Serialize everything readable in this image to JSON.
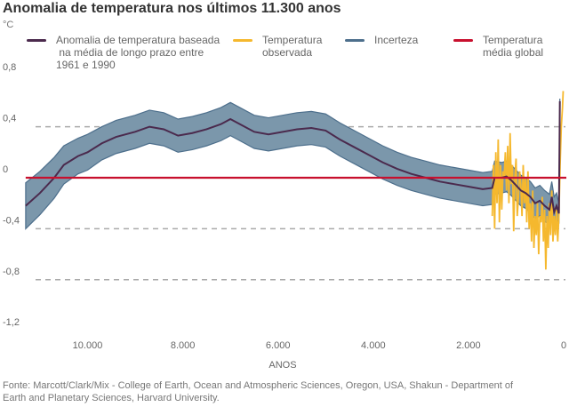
{
  "title": "Anomalia de temperatura nos últimos 11.300 anos",
  "source": "Fonte: Marcott/Clark/Mix - College of Earth, Ocean and Atmospheric Sciences, Oregon, USA, Shakun - Department of Earth and Planetary Sciences, Harvard University.",
  "chart_data": {
    "type": "line",
    "title": "Anomalia de temperatura nos últimos 11.300 anos",
    "ylabel": "°C",
    "xlabel": "ANOS",
    "xlim": [
      11300,
      0
    ],
    "ylim": [
      -1.2,
      0.8
    ],
    "x_reversed": true,
    "xticks": [
      10000,
      8000,
      6000,
      4000,
      2000,
      0
    ],
    "xtick_labels": [
      "10.000",
      "8.000",
      "6.000",
      "4.000",
      "2.000",
      "0"
    ],
    "yticks": [
      0.8,
      0.4,
      0,
      -0.4,
      -0.8,
      -1.2
    ],
    "ytick_labels": [
      "0,8",
      "0,4",
      "0",
      "-0,4",
      "-0,8",
      "-1,2"
    ],
    "grid": "dashed horizontal at ±0.4, -0.8",
    "legend_placement": "top",
    "legend": [
      {
        "label": "Anomalia de temperatura baseada\n na média de longo prazo entre\n1961 e 1990",
        "color": "#4b2a4d"
      },
      {
        "label": "Temperatura\nobservada",
        "color": "#f5b82e"
      },
      {
        "label": "Incerteza",
        "color": "#4d6f8c"
      },
      {
        "label": "Temperatura\nmédia global",
        "color": "#c8102e"
      }
    ],
    "series": [
      {
        "name": "Anomalia de temperatura baseada na média de longo prazo entre 1961 e 1990",
        "color": "#4b2a4d",
        "x": [
          11300,
          11000,
          10700,
          10500,
          10200,
          10000,
          9700,
          9400,
          9000,
          8700,
          8400,
          8100,
          7800,
          7500,
          7200,
          7000,
          6800,
          6500,
          6200,
          5900,
          5600,
          5300,
          5000,
          4700,
          4400,
          4100,
          3800,
          3500,
          3200,
          2900,
          2600,
          2300,
          2000,
          1700,
          1500,
          1450,
          1300,
          1200,
          1100,
          1000,
          900,
          800,
          700,
          600,
          500,
          400,
          300,
          250,
          200,
          150,
          100,
          80
        ],
        "y": [
          -0.22,
          -0.12,
          0.0,
          0.1,
          0.17,
          0.2,
          0.27,
          0.32,
          0.36,
          0.4,
          0.38,
          0.33,
          0.35,
          0.38,
          0.42,
          0.46,
          0.42,
          0.36,
          0.34,
          0.36,
          0.38,
          0.39,
          0.37,
          0.3,
          0.24,
          0.18,
          0.12,
          0.07,
          0.03,
          0.0,
          -0.03,
          -0.05,
          -0.07,
          -0.09,
          -0.08,
          0.0,
          0.0,
          0.01,
          -0.02,
          -0.06,
          -0.1,
          -0.12,
          -0.15,
          -0.2,
          -0.18,
          -0.22,
          -0.25,
          -0.15,
          -0.27,
          -0.22,
          -0.28,
          0.6
        ]
      },
      {
        "name": "Incerteza",
        "color": "#4d6f8c",
        "fill": "#7b97ab",
        "half_width": [
          0.18,
          0.17,
          0.16,
          0.15,
          0.14,
          0.14,
          0.13,
          0.13,
          0.13,
          0.13,
          0.13,
          0.13,
          0.13,
          0.13,
          0.13,
          0.13,
          0.13,
          0.13,
          0.13,
          0.13,
          0.13,
          0.13,
          0.13,
          0.13,
          0.13,
          0.13,
          0.13,
          0.13,
          0.13,
          0.13,
          0.13,
          0.13,
          0.13,
          0.13,
          0.13,
          0.13,
          0.12,
          0.12,
          0.12,
          0.12,
          0.12,
          0.12,
          0.12,
          0.12,
          0.12,
          0.12,
          0.12,
          0.12,
          0.12,
          0.1,
          0.08,
          0.02
        ]
      },
      {
        "name": "Temperatura observada",
        "color": "#f5b82e",
        "x": [
          1500,
          1475,
          1450,
          1425,
          1400,
          1375,
          1350,
          1325,
          1300,
          1275,
          1250,
          1225,
          1200,
          1175,
          1150,
          1125,
          1100,
          1075,
          1050,
          1025,
          1000,
          975,
          950,
          925,
          900,
          875,
          850,
          825,
          800,
          775,
          750,
          725,
          700,
          675,
          650,
          625,
          600,
          575,
          550,
          525,
          500,
          475,
          450,
          425,
          400,
          375,
          350,
          325,
          300,
          275,
          250,
          225,
          200,
          175,
          150,
          125,
          100,
          75,
          50,
          25,
          10
        ],
        "y": [
          -0.3,
          0.1,
          -0.4,
          0.2,
          -0.2,
          0.3,
          -0.35,
          0.1,
          -0.25,
          0.05,
          0.0,
          0.2,
          -0.1,
          0.25,
          -0.2,
          0.35,
          -0.05,
          0.1,
          -0.42,
          0.0,
          0.15,
          -0.3,
          -0.15,
          0.05,
          -0.05,
          -0.3,
          0.1,
          -0.2,
          0.0,
          -0.35,
          0.05,
          -0.4,
          -0.2,
          -0.5,
          -0.1,
          -0.55,
          -0.3,
          -0.45,
          -0.2,
          -0.6,
          -0.3,
          -0.35,
          -0.15,
          -0.5,
          -0.25,
          -0.72,
          -0.3,
          -0.55,
          -0.2,
          -0.45,
          -0.1,
          -0.5,
          -0.3,
          -0.45,
          -0.25,
          -0.5,
          -0.3,
          0.1,
          0.4,
          0.55,
          0.68
        ]
      },
      {
        "name": "Temperatura média global",
        "color": "#c8102e",
        "x": [
          11300,
          0
        ],
        "y": [
          0,
          0
        ]
      }
    ]
  }
}
